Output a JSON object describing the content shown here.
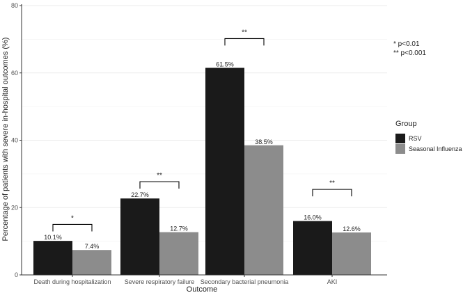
{
  "chart_data": {
    "type": "bar",
    "xlabel": "Outcome",
    "ylabel": "Percentage of patients with severe in-hospital outcomes (%)",
    "ylim": [
      0,
      80
    ],
    "yticks": [
      "0",
      "20",
      "40",
      "60",
      "80"
    ],
    "categories": [
      "Death during hospitalization",
      "Severe respiratory failure",
      "Secondary bacterial pneumonia",
      "AKI"
    ],
    "series": [
      {
        "name": "RSV",
        "color": "#1a1a1a",
        "values": [
          10.1,
          22.7,
          61.5,
          16.0
        ],
        "labels": [
          "10.1%",
          "22.7%",
          "61.5%",
          "16.0%"
        ]
      },
      {
        "name": "Seasonal Influenza",
        "color": "#8c8c8c",
        "values": [
          7.4,
          12.7,
          38.5,
          12.6
        ],
        "labels": [
          "7.4%",
          "12.7%",
          "38.5%",
          "12.6%"
        ]
      }
    ],
    "significance": [
      {
        "category": "Death during hospitalization",
        "label": "*",
        "bracket_value": 15
      },
      {
        "category": "Severe respiratory failure",
        "label": "**",
        "bracket_value": 27.7
      },
      {
        "category": "Secondary bacterial pneumonia",
        "label": "**",
        "bracket_value": 70.2
      },
      {
        "category": "AKI",
        "label": "**",
        "bracket_value": 25.4
      }
    ],
    "legend": {
      "title": "Group",
      "position": "right"
    },
    "notes": [
      "* p<0.01",
      "** p<0.001"
    ],
    "grid": true
  }
}
